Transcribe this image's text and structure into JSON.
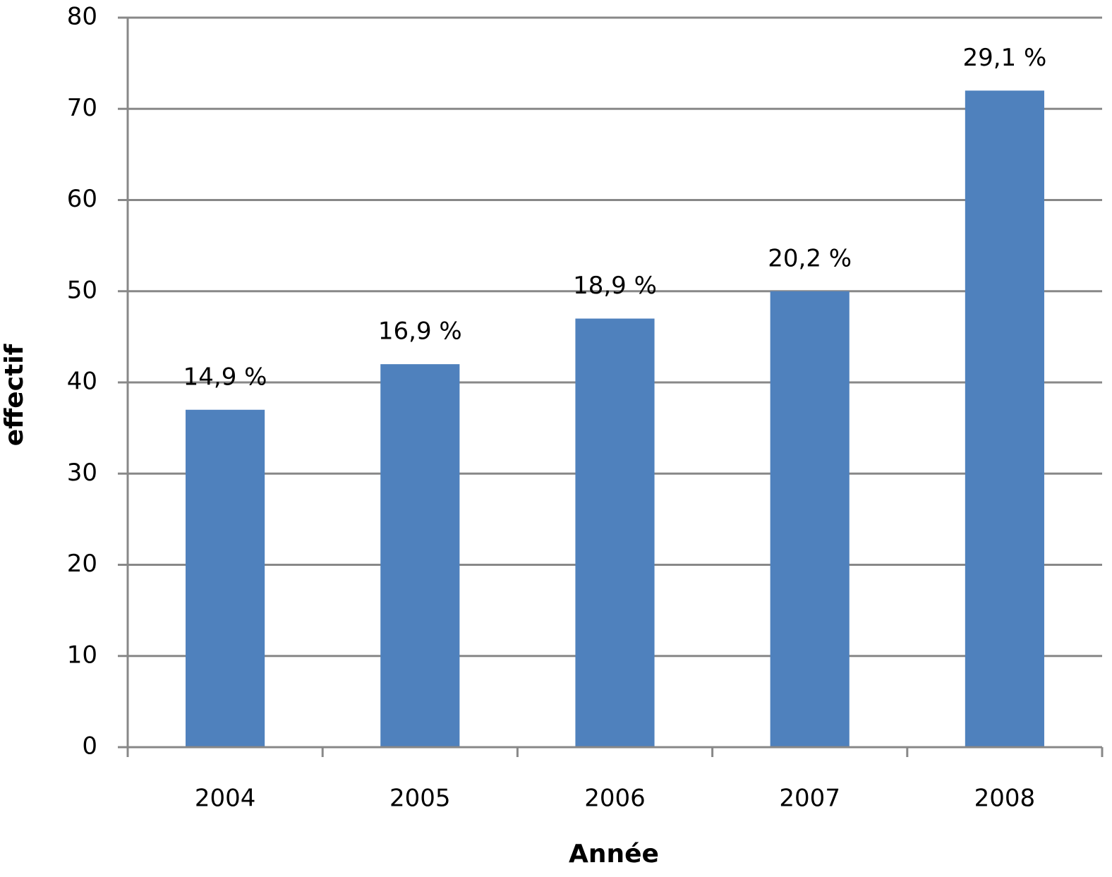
{
  "chart_data": {
    "type": "bar",
    "x_label": "Année",
    "y_label": "effectif",
    "categories": [
      "2004",
      "2005",
      "2006",
      "2007",
      "2008"
    ],
    "values": [
      37,
      42,
      47,
      50,
      72
    ],
    "annotations": [
      "14,9 %",
      "16,9 %",
      "18,9 %",
      "20,2 %",
      "29,1 %"
    ],
    "color": "#4f81bd",
    "ylim": [
      0,
      80
    ],
    "yticks": [
      0,
      10,
      20,
      30,
      40,
      50,
      60,
      70,
      80
    ],
    "grid": true
  }
}
